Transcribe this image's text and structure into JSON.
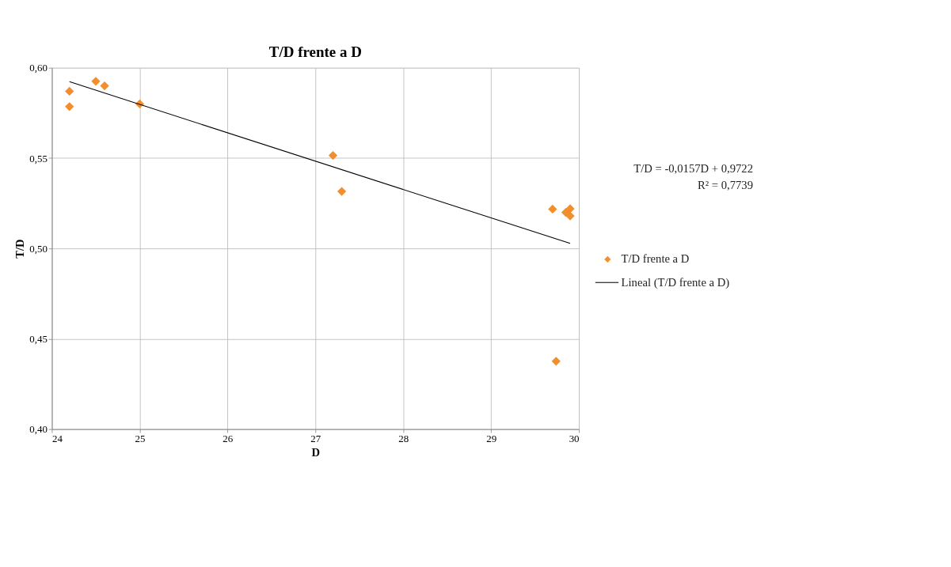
{
  "chart_data": {
    "type": "scatter",
    "title": "T/D frente a D",
    "xlabel": "D",
    "ylabel": "T/D",
    "xlim": [
      24,
      30
    ],
    "xticks": [
      24,
      25,
      26,
      27,
      28,
      29,
      30
    ],
    "ylim": [
      0.4,
      0.6
    ],
    "yticks": [
      {
        "value": 0.4,
        "label": "0,40"
      },
      {
        "value": 0.45,
        "label": "0,45"
      },
      {
        "value": 0.5,
        "label": "0,50"
      },
      {
        "value": 0.55,
        "label": "0,55"
      },
      {
        "value": 0.6,
        "label": "0,60"
      }
    ],
    "grid": true,
    "legend": "right",
    "series": [
      {
        "name": "T/D frente a D",
        "type": "scatter",
        "marker": "diamond",
        "color": "#f28e2b",
        "x": [
          24.2,
          24.2,
          24.5,
          24.6,
          25.0,
          27.2,
          27.3,
          29.7,
          29.85,
          29.9,
          29.9,
          29.74
        ],
        "values": [
          0.587,
          0.5785,
          0.5925,
          0.59,
          0.58,
          0.5515,
          0.5316,
          0.5218,
          0.52,
          0.522,
          0.518,
          0.4376
        ]
      },
      {
        "name": "Lineal (T/D frente a D)",
        "type": "line",
        "marker": "none",
        "color": "#000000",
        "x": [
          24.2,
          29.9
        ],
        "values": [
          0.5923,
          0.5028
        ]
      }
    ],
    "annotations": [
      "T/D = -0,0157D + 0,9722",
      "R² = 0,7739"
    ]
  }
}
